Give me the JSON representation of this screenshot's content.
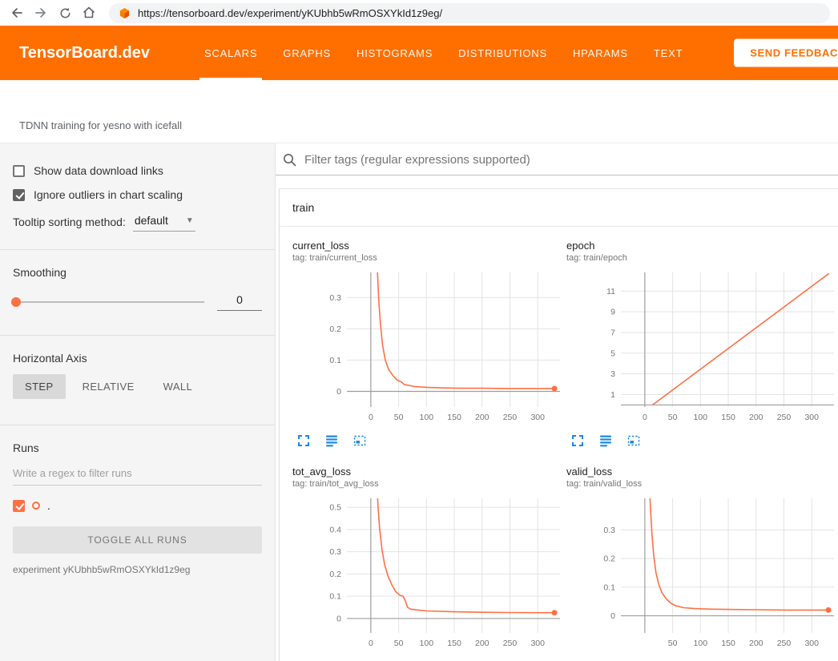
{
  "browser": {
    "url": "https://tensorboard.dev/experiment/yKUbhb5wRmOSXYkId1z9eg/"
  },
  "header": {
    "logo": "TensorBoard.dev",
    "tabs": [
      {
        "label": "SCALARS",
        "active": true
      },
      {
        "label": "GRAPHS",
        "active": false
      },
      {
        "label": "HISTOGRAMS",
        "active": false
      },
      {
        "label": "DISTRIBUTIONS",
        "active": false
      },
      {
        "label": "HPARAMS",
        "active": false
      },
      {
        "label": "TEXT",
        "active": false
      }
    ],
    "feedback_button": "SEND FEEDBACK"
  },
  "experiment": {
    "title": "TDNN training for yesno with icefall",
    "caption": "experiment yKUbhb5wRmOSXYkId1z9eg"
  },
  "sidebar": {
    "show_download_label": "Show data download links",
    "show_download_checked": false,
    "ignore_outliers_label": "Ignore outliers in chart scaling",
    "ignore_outliers_checked": true,
    "tooltip_sorting_label": "Tooltip sorting method:",
    "tooltip_sorting_value": "default",
    "smoothing_label": "Smoothing",
    "smoothing_value": "0",
    "horizontal_axis_label": "Horizontal Axis",
    "axis_buttons": [
      "STEP",
      "RELATIVE",
      "WALL"
    ],
    "axis_selected": "STEP",
    "runs_label": "Runs",
    "runs_filter_placeholder": "Write a regex to filter runs",
    "run_name": ".",
    "run_checked": true,
    "toggle_all_label": "TOGGLE ALL RUNS"
  },
  "main": {
    "filter_placeholder": "Filter tags (regular expressions supported)",
    "section_title": "train"
  },
  "colors": {
    "header_orange": "#ff6f00",
    "run_line_orange": "#ff7043",
    "tool_icon_blue": "#1e88e5"
  },
  "chart_toolbar_icons": [
    "fullscreen-icon",
    "data-series-icon",
    "fit-domain-icon"
  ],
  "chart_data": [
    {
      "type": "line",
      "title": "current_loss",
      "tag": "tag: train/current_loss",
      "xlabel": "",
      "ylabel": "",
      "xlim": [
        -43,
        340
      ],
      "ylim": [
        -0.05,
        0.38
      ],
      "xticks": [
        0,
        50,
        100,
        150,
        200,
        250,
        300
      ],
      "yticks": [
        0,
        0.1,
        0.2,
        0.3
      ],
      "grid": true,
      "legend": false,
      "series": [
        {
          "name": ".",
          "color": "#ff7043",
          "endpoint": true,
          "points": [
            [
              11,
              0.5
            ],
            [
              12,
              0.38
            ],
            [
              14,
              0.3
            ],
            [
              17,
              0.22
            ],
            [
              21,
              0.15
            ],
            [
              26,
              0.1
            ],
            [
              32,
              0.07
            ],
            [
              40,
              0.05
            ],
            [
              48,
              0.035
            ],
            [
              55,
              0.03
            ],
            [
              60,
              0.022
            ],
            [
              80,
              0.015
            ],
            [
              100,
              0.013
            ],
            [
              130,
              0.011
            ],
            [
              160,
              0.01
            ],
            [
              200,
              0.01
            ],
            [
              250,
              0.009
            ],
            [
              300,
              0.009
            ],
            [
              330,
              0.009
            ]
          ]
        }
      ]
    },
    {
      "type": "line",
      "title": "epoch",
      "tag": "tag: train/epoch",
      "xlabel": "",
      "ylabel": "",
      "xlim": [
        -43,
        340
      ],
      "ylim": [
        -0.2,
        12.8
      ],
      "xticks": [
        0,
        50,
        100,
        150,
        200,
        250,
        300
      ],
      "yticks": [
        1,
        3,
        5,
        7,
        9,
        11
      ],
      "grid": true,
      "legend": false,
      "series": [
        {
          "name": ".",
          "color": "#ff7043",
          "endpoint": false,
          "points": [
            [
              14,
              0
            ],
            [
              331,
              12.7
            ]
          ]
        }
      ]
    },
    {
      "type": "line",
      "title": "tot_avg_loss",
      "tag": "tag: train/tot_avg_loss",
      "xlabel": "",
      "ylabel": "",
      "xlim": [
        -43,
        340
      ],
      "ylim": [
        -0.065,
        0.54
      ],
      "xticks": [
        0,
        50,
        100,
        150,
        200,
        250,
        300
      ],
      "yticks": [
        0,
        0.1,
        0.2,
        0.3,
        0.4,
        0.5
      ],
      "grid": true,
      "legend": false,
      "series": [
        {
          "name": ".",
          "color": "#ff7043",
          "endpoint": true,
          "points": [
            [
              11,
              0.6
            ],
            [
              13,
              0.5
            ],
            [
              16,
              0.4
            ],
            [
              20,
              0.31
            ],
            [
              25,
              0.24
            ],
            [
              31,
              0.19
            ],
            [
              38,
              0.15
            ],
            [
              45,
              0.12
            ],
            [
              52,
              0.105
            ],
            [
              58,
              0.1
            ],
            [
              62,
              0.08
            ],
            [
              66,
              0.05
            ],
            [
              72,
              0.042
            ],
            [
              85,
              0.038
            ],
            [
              100,
              0.034
            ],
            [
              150,
              0.03
            ],
            [
              200,
              0.028
            ],
            [
              250,
              0.027
            ],
            [
              300,
              0.026
            ],
            [
              330,
              0.026
            ]
          ]
        }
      ]
    },
    {
      "type": "line",
      "title": "valid_loss",
      "tag": "tag: train/valid_loss",
      "xlabel": "",
      "ylabel": "",
      "xlim": [
        -43,
        340
      ],
      "ylim": [
        -0.06,
        0.41
      ],
      "xticks": [
        50,
        100,
        150,
        200,
        250,
        300
      ],
      "yticks": [
        0,
        0.1,
        0.2,
        0.3
      ],
      "grid": true,
      "legend": false,
      "series": [
        {
          "name": ".",
          "color": "#ff7043",
          "endpoint": true,
          "points": [
            [
              8,
              0.5
            ],
            [
              10,
              0.38
            ],
            [
              13,
              0.28
            ],
            [
              16,
              0.21
            ],
            [
              20,
              0.15
            ],
            [
              25,
              0.11
            ],
            [
              31,
              0.08
            ],
            [
              38,
              0.06
            ],
            [
              46,
              0.045
            ],
            [
              55,
              0.035
            ],
            [
              70,
              0.028
            ],
            [
              90,
              0.025
            ],
            [
              120,
              0.023
            ],
            [
              160,
              0.022
            ],
            [
              200,
              0.021
            ],
            [
              250,
              0.02
            ],
            [
              300,
              0.02
            ],
            [
              330,
              0.02
            ]
          ]
        }
      ]
    }
  ]
}
